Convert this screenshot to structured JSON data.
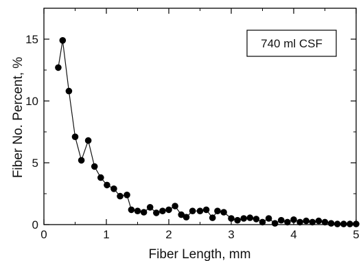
{
  "chart_data": {
    "type": "line",
    "title": "",
    "xlabel": "Fiber Length, mm",
    "ylabel": "Fiber No. Percent, %",
    "xlim": [
      0,
      5
    ],
    "ylim": [
      0,
      17.5
    ],
    "x_ticks": [
      0,
      1,
      2,
      3,
      4,
      5
    ],
    "y_ticks": [
      0,
      5,
      10,
      15
    ],
    "grid": false,
    "legend": "none",
    "annotation": "740 ml CSF",
    "colors": {
      "line": "#111111",
      "marker": "#000000",
      "axis": "#000000"
    },
    "series": [
      {
        "marker": "filled-circle",
        "points": [
          [
            0.23,
            12.7
          ],
          [
            0.3,
            14.9
          ],
          [
            0.4,
            10.8
          ],
          [
            0.5,
            7.1
          ],
          [
            0.6,
            5.2
          ],
          [
            0.71,
            6.8
          ],
          [
            0.81,
            4.7
          ],
          [
            0.91,
            3.8
          ],
          [
            1.01,
            3.2
          ],
          [
            1.12,
            2.9
          ],
          [
            1.22,
            2.3
          ],
          [
            1.33,
            2.4
          ],
          [
            1.4,
            1.2
          ],
          [
            1.5,
            1.1
          ],
          [
            1.6,
            1.0
          ],
          [
            1.7,
            1.4
          ],
          [
            1.8,
            0.95
          ],
          [
            1.9,
            1.1
          ],
          [
            2.0,
            1.2
          ],
          [
            2.1,
            1.5
          ],
          [
            2.2,
            0.8
          ],
          [
            2.28,
            0.6
          ],
          [
            2.38,
            1.1
          ],
          [
            2.5,
            1.1
          ],
          [
            2.6,
            1.2
          ],
          [
            2.7,
            0.55
          ],
          [
            2.78,
            1.1
          ],
          [
            2.88,
            1.0
          ],
          [
            3.0,
            0.5
          ],
          [
            3.1,
            0.35
          ],
          [
            3.2,
            0.5
          ],
          [
            3.3,
            0.55
          ],
          [
            3.4,
            0.45
          ],
          [
            3.5,
            0.2
          ],
          [
            3.6,
            0.5
          ],
          [
            3.7,
            0.1
          ],
          [
            3.8,
            0.35
          ],
          [
            3.9,
            0.2
          ],
          [
            4.0,
            0.4
          ],
          [
            4.1,
            0.2
          ],
          [
            4.2,
            0.3
          ],
          [
            4.3,
            0.2
          ],
          [
            4.4,
            0.3
          ],
          [
            4.5,
            0.2
          ],
          [
            4.6,
            0.1
          ],
          [
            4.7,
            0.05
          ],
          [
            4.8,
            0.05
          ],
          [
            4.9,
            0.05
          ],
          [
            5.0,
            0.05
          ]
        ]
      }
    ]
  }
}
